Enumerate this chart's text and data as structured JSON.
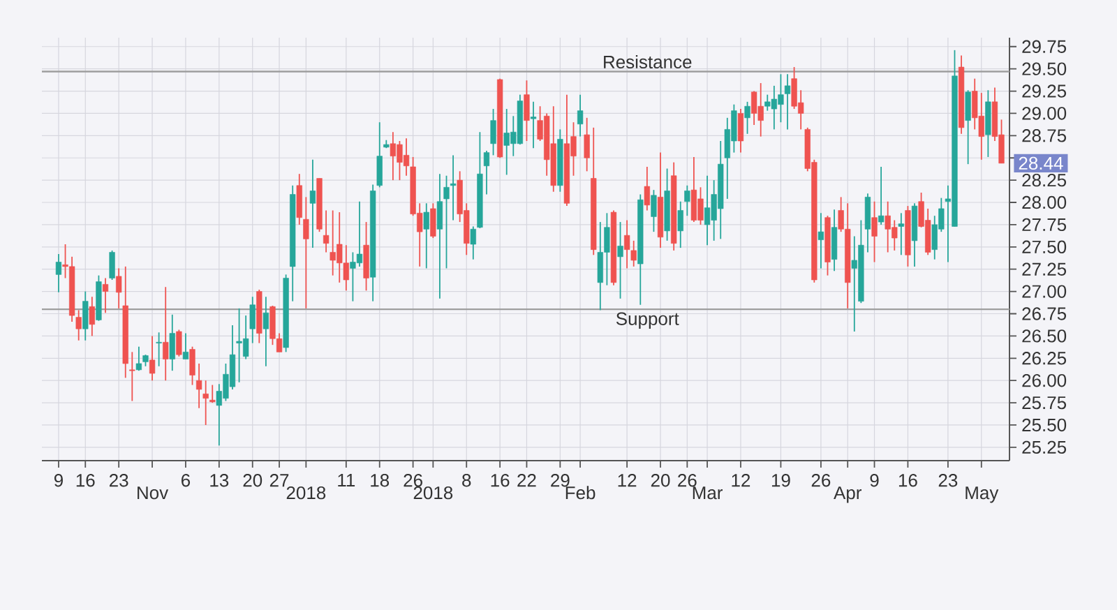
{
  "chart_data": {
    "type": "candlestick",
    "categories": [
      "9",
      null,
      null,
      null,
      "16",
      null,
      null,
      null,
      null,
      "23",
      null,
      null,
      null,
      null,
      "Nov",
      null,
      null,
      null,
      null,
      "6",
      null,
      null,
      null,
      null,
      "13",
      null,
      null,
      null,
      null,
      "20",
      null,
      null,
      null,
      "27",
      null,
      null,
      null,
      "2018",
      null,
      null,
      null,
      null,
      null,
      "11",
      null,
      null,
      null,
      null,
      "18",
      null,
      null,
      null,
      null,
      "26",
      null,
      null,
      "2018",
      null,
      null,
      null,
      null,
      "8",
      null,
      null,
      null,
      null,
      "16",
      null,
      null,
      null,
      "22",
      null,
      null,
      null,
      null,
      "29",
      null,
      null,
      "Feb",
      null,
      null,
      null,
      null,
      null,
      null,
      "12",
      null,
      null,
      null,
      null,
      "20",
      null,
      null,
      null,
      "26",
      null,
      null,
      "Mar",
      null,
      null,
      null,
      null,
      "12",
      null,
      null,
      null,
      null,
      null,
      "19",
      null,
      null,
      null,
      null,
      null,
      "26",
      null,
      null,
      null,
      "Apr",
      null,
      null,
      null,
      "9",
      null,
      null,
      null,
      null,
      "16",
      null,
      null,
      null,
      null,
      null,
      "23",
      null,
      null,
      null,
      null,
      "May",
      null,
      null,
      null
    ],
    "ohlc": [
      [
        27.19,
        27.42,
        26.99,
        27.33
      ],
      [
        27.3,
        27.53,
        27.15,
        27.28
      ],
      [
        27.28,
        27.39,
        26.66,
        26.73
      ],
      [
        26.71,
        26.79,
        26.45,
        26.58
      ],
      [
        26.58,
        27.0,
        26.45,
        26.89
      ],
      [
        26.83,
        26.94,
        26.5,
        26.63
      ],
      [
        26.68,
        27.18,
        26.67,
        27.11
      ],
      [
        27.08,
        27.15,
        26.76,
        27.0
      ],
      [
        27.15,
        27.46,
        27.13,
        27.44
      ],
      [
        27.17,
        27.26,
        26.81,
        26.99
      ],
      [
        26.84,
        27.28,
        26.03,
        26.19
      ],
      [
        26.12,
        26.32,
        25.77,
        26.11
      ],
      [
        26.12,
        26.38,
        26.11,
        26.19
      ],
      [
        26.21,
        26.29,
        26.16,
        26.28
      ],
      [
        26.23,
        26.5,
        26.0,
        26.08
      ],
      [
        26.42,
        26.54,
        26.16,
        26.43
      ],
      [
        26.43,
        27.05,
        26.0,
        26.24
      ],
      [
        26.24,
        26.74,
        26.11,
        26.53
      ],
      [
        26.55,
        26.57,
        26.27,
        26.29
      ],
      [
        26.24,
        26.53,
        26.24,
        26.32
      ],
      [
        26.35,
        26.38,
        25.95,
        26.06
      ],
      [
        26.0,
        26.19,
        25.69,
        25.9
      ],
      [
        25.85,
        26.0,
        25.5,
        25.8
      ],
      [
        25.78,
        25.95,
        25.75,
        25.76
      ],
      [
        25.72,
        25.96,
        25.27,
        25.88
      ],
      [
        25.8,
        26.19,
        25.77,
        26.07
      ],
      [
        25.93,
        26.62,
        25.9,
        26.29
      ],
      [
        26.42,
        26.81,
        25.98,
        26.44
      ],
      [
        26.27,
        26.73,
        26.24,
        26.47
      ],
      [
        26.58,
        26.94,
        26.42,
        26.85
      ],
      [
        27.0,
        27.02,
        26.42,
        26.53
      ],
      [
        26.58,
        26.94,
        26.16,
        26.76
      ],
      [
        26.83,
        26.84,
        26.4,
        26.47
      ],
      [
        26.47,
        26.53,
        26.32,
        26.32
      ],
      [
        26.37,
        27.19,
        26.32,
        27.15
      ],
      [
        27.28,
        28.19,
        26.89,
        28.09
      ],
      [
        28.19,
        28.32,
        27.75,
        27.83
      ],
      [
        27.81,
        28.06,
        26.81,
        27.59
      ],
      [
        27.99,
        28.48,
        27.49,
        28.13
      ],
      [
        28.27,
        28.27,
        27.67,
        27.7
      ],
      [
        27.63,
        27.91,
        27.44,
        27.54
      ],
      [
        27.44,
        27.91,
        27.18,
        27.35
      ],
      [
        27.53,
        27.89,
        27.1,
        27.32
      ],
      [
        27.32,
        27.52,
        27.01,
        27.13
      ],
      [
        27.26,
        27.44,
        26.89,
        27.33
      ],
      [
        27.32,
        28.01,
        27.28,
        27.42
      ],
      [
        27.52,
        27.78,
        27.01,
        27.15
      ],
      [
        27.16,
        28.2,
        26.89,
        28.13
      ],
      [
        28.19,
        28.9,
        28.17,
        28.52
      ],
      [
        28.62,
        28.7,
        28.61,
        28.65
      ],
      [
        28.66,
        28.79,
        28.25,
        28.52
      ],
      [
        28.65,
        28.69,
        28.25,
        28.45
      ],
      [
        28.53,
        28.72,
        28.3,
        28.41
      ],
      [
        28.4,
        28.51,
        27.85,
        27.87
      ],
      [
        27.88,
        27.99,
        27.28,
        27.67
      ],
      [
        27.7,
        27.99,
        27.26,
        27.89
      ],
      [
        27.93,
        27.99,
        27.6,
        27.62
      ],
      [
        27.7,
        28.32,
        26.92,
        28.01
      ],
      [
        28.04,
        28.3,
        27.26,
        28.17
      ],
      [
        28.19,
        28.53,
        27.8,
        28.21
      ],
      [
        28.25,
        28.35,
        27.78,
        27.87
      ],
      [
        27.91,
        27.99,
        27.41,
        27.54
      ],
      [
        27.53,
        27.73,
        27.36,
        27.7
      ],
      [
        27.72,
        28.79,
        27.71,
        28.32
      ],
      [
        28.41,
        28.58,
        28.09,
        28.56
      ],
      [
        28.66,
        29.05,
        28.53,
        28.92
      ],
      [
        29.38,
        29.39,
        28.5,
        28.51
      ],
      [
        28.64,
        29.05,
        28.31,
        28.78
      ],
      [
        28.66,
        28.97,
        28.52,
        28.79
      ],
      [
        28.66,
        29.21,
        28.65,
        29.14
      ],
      [
        29.21,
        29.37,
        28.69,
        28.92
      ],
      [
        28.94,
        29.13,
        28.61,
        28.96
      ],
      [
        28.92,
        29.08,
        28.69,
        28.71
      ],
      [
        28.97,
        29.0,
        28.3,
        28.48
      ],
      [
        28.66,
        29.08,
        28.12,
        28.19
      ],
      [
        28.19,
        28.82,
        28.12,
        28.71
      ],
      [
        28.66,
        29.21,
        27.96,
        27.99
      ],
      [
        28.74,
        28.9,
        28.3,
        28.52
      ],
      [
        28.88,
        29.21,
        28.74,
        29.03
      ],
      [
        28.76,
        28.95,
        28.35,
        28.5
      ],
      [
        28.27,
        28.84,
        27.41,
        27.47
      ],
      [
        27.1,
        27.78,
        26.79,
        27.44
      ],
      [
        27.44,
        27.88,
        27.07,
        27.72
      ],
      [
        27.89,
        27.91,
        27.07,
        27.1
      ],
      [
        27.39,
        27.78,
        26.92,
        27.51
      ],
      [
        27.63,
        27.8,
        27.26,
        27.47
      ],
      [
        27.46,
        27.57,
        27.28,
        27.35
      ],
      [
        27.31,
        28.09,
        26.85,
        28.03
      ],
      [
        28.18,
        28.4,
        27.91,
        27.97
      ],
      [
        27.84,
        28.14,
        27.67,
        28.08
      ],
      [
        28.06,
        28.56,
        27.49,
        27.61
      ],
      [
        27.68,
        28.38,
        27.57,
        28.13
      ],
      [
        28.3,
        28.45,
        27.46,
        27.54
      ],
      [
        27.68,
        28.01,
        27.49,
        27.91
      ],
      [
        28.01,
        28.19,
        27.85,
        28.13
      ],
      [
        28.14,
        28.51,
        27.78,
        27.8
      ],
      [
        28.04,
        28.17,
        27.75,
        27.8
      ],
      [
        27.75,
        28.3,
        27.52,
        27.94
      ],
      [
        27.8,
        28.25,
        27.57,
        28.09
      ],
      [
        27.93,
        28.69,
        27.59,
        28.43
      ],
      [
        28.5,
        28.95,
        28.04,
        28.82
      ],
      [
        28.69,
        29.1,
        28.56,
        29.03
      ],
      [
        29.0,
        29.05,
        28.56,
        28.69
      ],
      [
        28.95,
        29.13,
        28.77,
        29.08
      ],
      [
        29.24,
        29.25,
        28.87,
        29.0
      ],
      [
        29.08,
        29.34,
        28.74,
        28.92
      ],
      [
        29.08,
        29.21,
        29.03,
        29.13
      ],
      [
        29.05,
        29.31,
        28.82,
        29.16
      ],
      [
        29.1,
        29.44,
        28.9,
        29.21
      ],
      [
        29.22,
        29.44,
        28.82,
        29.31
      ],
      [
        29.39,
        29.52,
        29.05,
        29.08
      ],
      [
        29.12,
        29.26,
        28.82,
        29.0
      ],
      [
        28.82,
        28.84,
        28.35,
        28.38
      ],
      [
        28.45,
        28.48,
        27.1,
        27.13
      ],
      [
        27.58,
        27.88,
        27.26,
        27.67
      ],
      [
        27.83,
        27.85,
        27.18,
        27.33
      ],
      [
        27.36,
        27.92,
        27.23,
        27.72
      ],
      [
        27.91,
        28.06,
        27.67,
        27.7
      ],
      [
        27.7,
        27.99,
        26.81,
        27.1
      ],
      [
        27.26,
        27.62,
        26.55,
        27.35
      ],
      [
        26.89,
        27.8,
        26.87,
        27.52
      ],
      [
        27.7,
        28.1,
        27.44,
        28.06
      ],
      [
        27.83,
        28.01,
        27.33,
        27.62
      ],
      [
        27.78,
        28.4,
        27.75,
        27.85
      ],
      [
        27.85,
        28.01,
        27.44,
        27.7
      ],
      [
        27.72,
        27.8,
        27.46,
        27.6
      ],
      [
        27.73,
        27.88,
        27.41,
        27.76
      ],
      [
        27.91,
        27.96,
        27.28,
        27.41
      ],
      [
        27.57,
        27.99,
        27.28,
        27.96
      ],
      [
        28.01,
        28.11,
        27.72,
        27.73
      ],
      [
        27.8,
        27.93,
        27.41,
        27.44
      ],
      [
        27.47,
        27.85,
        27.36,
        27.75
      ],
      [
        27.7,
        28.05,
        27.67,
        27.93
      ],
      [
        28.01,
        28.19,
        27.33,
        28.04
      ],
      [
        27.73,
        29.71,
        27.73,
        29.42
      ],
      [
        29.52,
        29.65,
        28.77,
        28.84
      ],
      [
        28.92,
        29.26,
        28.43,
        29.24
      ],
      [
        29.25,
        29.39,
        28.82,
        28.95
      ],
      [
        28.97,
        29.23,
        28.48,
        28.74
      ],
      [
        28.76,
        29.26,
        28.51,
        29.13
      ],
      [
        29.13,
        29.29,
        28.69,
        28.74
      ],
      [
        28.76,
        28.93,
        28.44,
        28.44
      ]
    ],
    "colors": [
      "#26a69a",
      "#ef5350",
      "#ef5350",
      "#ef5350",
      "#26a69a",
      "#ef5350",
      "#26a69a",
      "#ef5350",
      "#26a69a",
      "#ef5350",
      "#ef5350",
      "#ef5350",
      "#26a69a",
      "#26a69a",
      "#ef5350",
      "#26a69a",
      "#ef5350",
      "#26a69a",
      "#ef5350",
      "#26a69a",
      "#ef5350",
      "#ef5350",
      "#ef5350",
      "#ef5350",
      "#26a69a",
      "#26a69a",
      "#26a69a",
      "#26a69a",
      "#26a69a",
      "#26a69a",
      "#ef5350",
      "#26a69a",
      "#ef5350",
      "#ef5350",
      "#26a69a",
      "#26a69a",
      "#ef5350",
      "#ef5350",
      "#26a69a",
      "#ef5350",
      "#ef5350",
      "#ef5350",
      "#ef5350",
      "#ef5350",
      "#26a69a",
      "#26a69a",
      "#ef5350",
      "#26a69a",
      "#26a69a",
      "#26a69a",
      "#ef5350",
      "#ef5350",
      "#ef5350",
      "#ef5350",
      "#ef5350",
      "#26a69a",
      "#ef5350",
      "#26a69a",
      "#26a69a",
      "#26a69a",
      "#ef5350",
      "#ef5350",
      "#26a69a",
      "#26a69a",
      "#26a69a",
      "#26a69a",
      "#ef5350",
      "#26a69a",
      "#26a69a",
      "#26a69a",
      "#ef5350",
      "#26a69a",
      "#ef5350",
      "#ef5350",
      "#ef5350",
      "#26a69a",
      "#ef5350",
      "#ef5350",
      "#26a69a",
      "#ef5350",
      "#ef5350",
      "#26a69a",
      "#26a69a",
      "#ef5350",
      "#26a69a",
      "#ef5350",
      "#ef5350",
      "#26a69a",
      "#ef5350",
      "#26a69a",
      "#ef5350",
      "#26a69a",
      "#ef5350",
      "#26a69a",
      "#26a69a",
      "#ef5350",
      "#ef5350",
      "#26a69a",
      "#26a69a",
      "#26a69a",
      "#26a69a",
      "#26a69a",
      "#ef5350",
      "#26a69a",
      "#ef5350",
      "#ef5350",
      "#26a69a",
      "#26a69a",
      "#26a69a",
      "#26a69a",
      "#ef5350",
      "#ef5350",
      "#ef5350",
      "#ef5350",
      "#26a69a",
      "#ef5350",
      "#26a69a",
      "#ef5350",
      "#ef5350",
      "#26a69a",
      "#26a69a",
      "#26a69a",
      "#ef5350",
      "#26a69a",
      "#ef5350",
      "#ef5350",
      "#26a69a",
      "#ef5350",
      "#26a69a",
      "#ef5350",
      "#ef5350",
      "#26a69a",
      "#26a69a",
      "#26a69a",
      "#26a69a",
      "#ef5350",
      "#26a69a",
      "#ef5350",
      "#ef5350",
      "#26a69a",
      "#ef5350",
      "#ef5350"
    ],
    "ylim": [
      25.1,
      29.85
    ],
    "yticks": [
      25.25,
      {
        "value": 25.5,
        "label": "25.50"
      },
      25.75,
      {
        "value": 26,
        "label": "26.00"
      },
      26.25,
      {
        "value": 26.5,
        "label": "26.50"
      },
      26.75,
      {
        "value": 27,
        "label": "27.00"
      },
      27.25,
      {
        "value": 27.5,
        "label": "27.50"
      },
      27.75,
      {
        "value": 28,
        "label": "28.00"
      },
      28.25,
      {
        "value": 28.5,
        "label": null
      },
      28.75,
      {
        "value": 29,
        "label": "29.00"
      },
      29.25,
      {
        "value": 29.5,
        "label": "29.50"
      },
      29.75
    ],
    "grid": true,
    "ref_lines": [
      {
        "axis": "y",
        "value": 29.47,
        "label": "Resistance",
        "color": "#9e9e9e"
      },
      {
        "axis": "y",
        "value": 26.8,
        "label": "Support",
        "color": "#9e9e9e"
      }
    ],
    "annotations": [
      "28.44"
    ]
  }
}
